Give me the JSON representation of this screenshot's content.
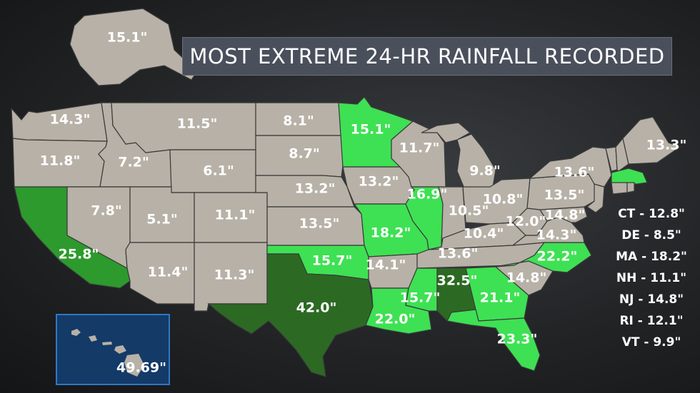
{
  "title": "MOST EXTREME 24-HR RAINFALL RECORDED",
  "colors": {
    "default_state": "#b7b1a7",
    "highlight_light": "#3ee153",
    "highlight_medium": "#2d9a2d",
    "highlight_dark": "#2c6a24",
    "title_bg": "#4a4f5c",
    "hawaii_bg": "#143a68"
  },
  "states": [
    {
      "name": "WA",
      "value": "14.3\"",
      "shade": "default"
    },
    {
      "name": "OR",
      "value": "11.8\"",
      "shade": "default"
    },
    {
      "name": "CA",
      "value": "25.8\"",
      "shade": "medium"
    },
    {
      "name": "ID",
      "value": "7.2\"",
      "shade": "default"
    },
    {
      "name": "NV",
      "value": "7.8\"",
      "shade": "default"
    },
    {
      "name": "MT",
      "value": "11.5\"",
      "shade": "default"
    },
    {
      "name": "WY",
      "value": "6.1\"",
      "shade": "default"
    },
    {
      "name": "UT",
      "value": "5.1\"",
      "shade": "default"
    },
    {
      "name": "AZ",
      "value": "11.4\"",
      "shade": "default"
    },
    {
      "name": "CO",
      "value": "11.1\"",
      "shade": "default"
    },
    {
      "name": "NM",
      "value": "11.3\"",
      "shade": "default"
    },
    {
      "name": "ND",
      "value": "8.1\"",
      "shade": "default"
    },
    {
      "name": "SD",
      "value": "8.7\"",
      "shade": "default"
    },
    {
      "name": "NE",
      "value": "13.2\"",
      "shade": "default"
    },
    {
      "name": "KS",
      "value": "13.5\"",
      "shade": "default"
    },
    {
      "name": "OK",
      "value": "15.7\"",
      "shade": "light"
    },
    {
      "name": "TX",
      "value": "42.0\"",
      "shade": "dark"
    },
    {
      "name": "MN",
      "value": "15.1\"",
      "shade": "light"
    },
    {
      "name": "IA",
      "value": "13.2\"",
      "shade": "default"
    },
    {
      "name": "MO",
      "value": "18.2\"",
      "shade": "light"
    },
    {
      "name": "AR",
      "value": "14.1\"",
      "shade": "default"
    },
    {
      "name": "LA",
      "value": "22.0\"",
      "shade": "light"
    },
    {
      "name": "WI",
      "value": "11.7\"",
      "shade": "default"
    },
    {
      "name": "IL",
      "value": "16.9\"",
      "shade": "light"
    },
    {
      "name": "MI",
      "value": "9.8\"",
      "shade": "default"
    },
    {
      "name": "IN",
      "value": "10.5\"",
      "shade": "default"
    },
    {
      "name": "OH",
      "value": "10.8\"",
      "shade": "default"
    },
    {
      "name": "KY",
      "value": "10.4\"",
      "shade": "default"
    },
    {
      "name": "TN",
      "value": "13.6\"",
      "shade": "default"
    },
    {
      "name": "MS",
      "value": "15.7\"",
      "shade": "light"
    },
    {
      "name": "AL",
      "value": "32.5\"",
      "shade": "dark"
    },
    {
      "name": "GA",
      "value": "21.1\"",
      "shade": "light"
    },
    {
      "name": "FL",
      "value": "23.3\"",
      "shade": "light"
    },
    {
      "name": "SC",
      "value": "14.8\"",
      "shade": "default"
    },
    {
      "name": "NC",
      "value": "22.2\"",
      "shade": "light"
    },
    {
      "name": "VA",
      "value": "14.3\"",
      "shade": "default"
    },
    {
      "name": "WV",
      "value": "12.0\"",
      "shade": "default"
    },
    {
      "name": "MD",
      "value": "14.8\"",
      "shade": "default"
    },
    {
      "name": "PA",
      "value": "13.5\"",
      "shade": "default"
    },
    {
      "name": "NY",
      "value": "13.6\"",
      "shade": "default"
    },
    {
      "name": "ME",
      "value": "13.3\"",
      "shade": "default"
    },
    {
      "name": "AK",
      "value": "15.1\"",
      "shade": "default"
    },
    {
      "name": "HI",
      "value": "49.69\"",
      "shade": "default"
    }
  ],
  "small_states": [
    "CT - 12.8\"",
    "DE - 8.5\"",
    "MA - 18.2\"",
    "NH - 11.1\"",
    "NJ - 14.8\"",
    "RI - 12.1\"",
    "VT - 9.9\""
  ]
}
